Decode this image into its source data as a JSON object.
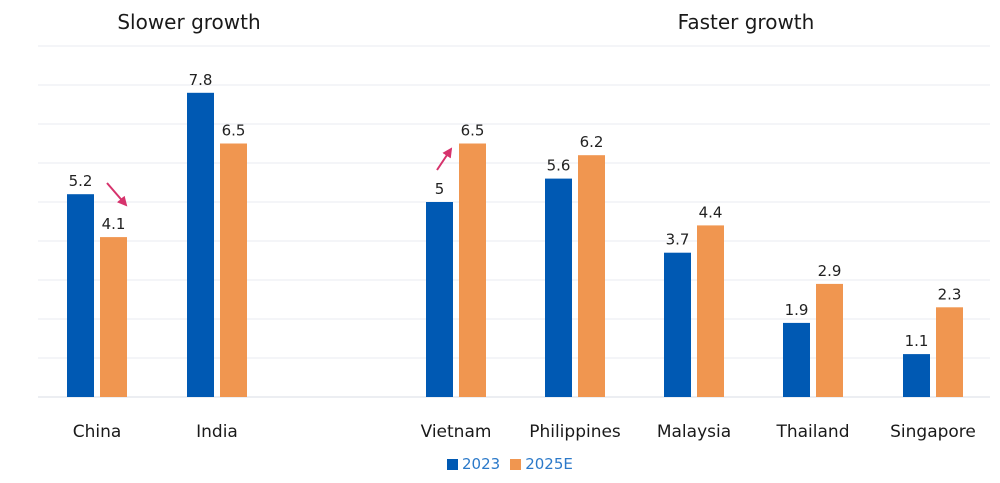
{
  "chart_data": {
    "type": "bar",
    "group_titles": [
      "Slower growth",
      "Faster growth"
    ],
    "categories": [
      "China",
      "India",
      "Vietnam",
      "Philippines",
      "Malaysia",
      "Thailand",
      "Singapore"
    ],
    "series": [
      {
        "name": "2023",
        "color": "#0059b3",
        "values": [
          5.2,
          7.8,
          5,
          5.6,
          3.7,
          1.9,
          1.1
        ]
      },
      {
        "name": "2025E",
        "color": "#f09650",
        "values": [
          4.1,
          6.5,
          6.5,
          6.2,
          4.4,
          2.9,
          2.3
        ]
      }
    ],
    "ylim": [
      0,
      9
    ],
    "grid": true,
    "legend_position": "bottom",
    "annotations": [
      {
        "category": "China",
        "direction": "down",
        "color": "#d6336c"
      },
      {
        "category": "Vietnam",
        "direction": "up",
        "color": "#d6336c"
      }
    ]
  }
}
